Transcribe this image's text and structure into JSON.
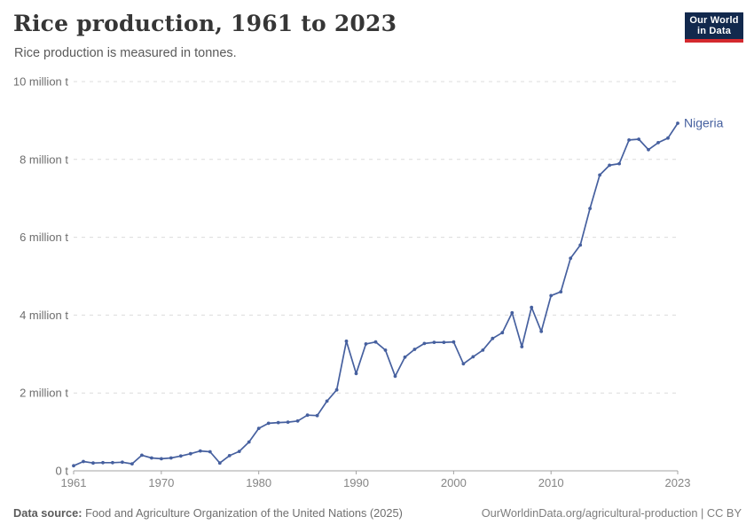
{
  "header": {
    "title": "Rice production, 1961 to 2023",
    "subtitle": "Rice production is measured in tonnes.",
    "logo": {
      "line1": "Our World",
      "line2": "in Data",
      "bg_color": "#12294d",
      "accent_color": "#d4292e"
    }
  },
  "footer": {
    "source_label": "Data source:",
    "source_text": " Food and Agriculture Organization of the United Nations (2025)",
    "credit_link": "OurWorldinData.org/agricultural-production",
    "credit_sep": " | ",
    "credit_license": "CC BY"
  },
  "chart_data": {
    "type": "line",
    "title": "Rice production, 1961 to 2023",
    "subtitle": "Rice production is measured in tonnes.",
    "unit": "tonnes",
    "entity": "Nigeria",
    "legend_position": "end-of-line-label",
    "grid": "horizontal-dashed",
    "xlim": [
      1961,
      2023
    ],
    "ylim": [
      0,
      10
    ],
    "xticks": [
      {
        "year": 1961,
        "label": "1961"
      },
      {
        "year": 1970,
        "label": "1970"
      },
      {
        "year": 1980,
        "label": "1980"
      },
      {
        "year": 1990,
        "label": "1990"
      },
      {
        "year": 2000,
        "label": "2000"
      },
      {
        "year": 2010,
        "label": "2010"
      },
      {
        "year": 2023,
        "label": "2023"
      }
    ],
    "yticks": [
      {
        "value": 0,
        "label": "0 t"
      },
      {
        "value": 2,
        "label": "2 million t"
      },
      {
        "value": 4,
        "label": "4 million t"
      },
      {
        "value": 6,
        "label": "6 million t"
      },
      {
        "value": 8,
        "label": "8 million t"
      },
      {
        "value": 10,
        "label": "10 million t"
      }
    ],
    "series": [
      {
        "name": "Nigeria",
        "color": "#46609F",
        "unit": "million tonnes",
        "points": [
          [
            1961,
            0.13
          ],
          [
            1962,
            0.24
          ],
          [
            1963,
            0.2
          ],
          [
            1964,
            0.21
          ],
          [
            1965,
            0.21
          ],
          [
            1966,
            0.22
          ],
          [
            1967,
            0.18
          ],
          [
            1968,
            0.4
          ],
          [
            1969,
            0.33
          ],
          [
            1970,
            0.31
          ],
          [
            1971,
            0.33
          ],
          [
            1972,
            0.38
          ],
          [
            1973,
            0.44
          ],
          [
            1974,
            0.51
          ],
          [
            1975,
            0.49
          ],
          [
            1976,
            0.2
          ],
          [
            1977,
            0.39
          ],
          [
            1978,
            0.5
          ],
          [
            1979,
            0.74
          ],
          [
            1980,
            1.09
          ],
          [
            1981,
            1.22
          ],
          [
            1982,
            1.24
          ],
          [
            1983,
            1.25
          ],
          [
            1984,
            1.28
          ],
          [
            1985,
            1.43
          ],
          [
            1986,
            1.42
          ],
          [
            1987,
            1.79
          ],
          [
            1988,
            2.08
          ],
          [
            1989,
            3.33
          ],
          [
            1990,
            2.5
          ],
          [
            1991,
            3.26
          ],
          [
            1992,
            3.31
          ],
          [
            1993,
            3.1
          ],
          [
            1994,
            2.43
          ],
          [
            1995,
            2.92
          ],
          [
            1996,
            3.12
          ],
          [
            1997,
            3.27
          ],
          [
            1998,
            3.3
          ],
          [
            1999,
            3.3
          ],
          [
            2000,
            3.31
          ],
          [
            2001,
            2.75
          ],
          [
            2002,
            2.93
          ],
          [
            2003,
            3.1
          ],
          [
            2004,
            3.4
          ],
          [
            2005,
            3.55
          ],
          [
            2006,
            4.06
          ],
          [
            2007,
            3.19
          ],
          [
            2008,
            4.2
          ],
          [
            2009,
            3.58
          ],
          [
            2010,
            4.5
          ],
          [
            2011,
            4.6
          ],
          [
            2012,
            5.46
          ],
          [
            2013,
            5.8
          ],
          [
            2014,
            6.74
          ],
          [
            2015,
            7.6
          ],
          [
            2016,
            7.85
          ],
          [
            2017,
            7.89
          ],
          [
            2018,
            8.5
          ],
          [
            2019,
            8.52
          ],
          [
            2020,
            8.25
          ],
          [
            2021,
            8.43
          ],
          [
            2022,
            8.55
          ],
          [
            2023,
            8.93
          ]
        ]
      }
    ],
    "colors": {
      "gridline": "#dcdcdc",
      "axis": "#a3a3a3",
      "ytick_label": "#6e6e6e",
      "xtick_label": "#858585"
    }
  }
}
